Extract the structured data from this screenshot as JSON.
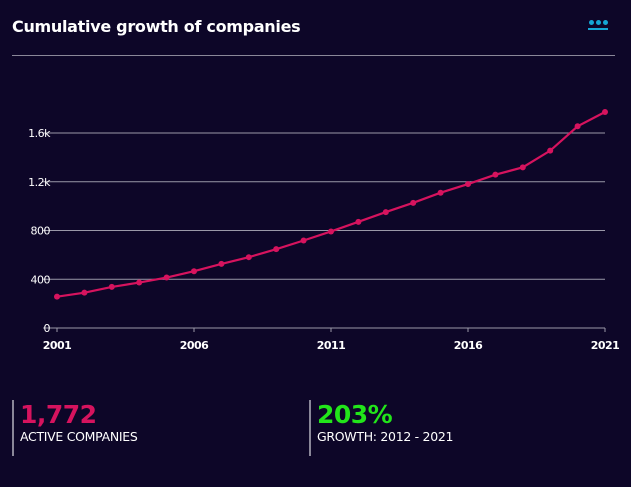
{
  "header": {
    "title": "Cumulative growth of companies",
    "menu_icon": "more-dots-icon"
  },
  "colors": {
    "background": "#0d0628",
    "line": "#d6135e",
    "growth": "#22e51a",
    "accent": "#15a6d4"
  },
  "chart_data": {
    "type": "line",
    "title": "",
    "xlabel": "",
    "ylabel": "",
    "x": [
      2001,
      2002,
      2003,
      2004,
      2005,
      2006,
      2007,
      2008,
      2009,
      2010,
      2011,
      2012,
      2013,
      2014,
      2015,
      2016,
      2017,
      2018,
      2019,
      2020,
      2021
    ],
    "series": [
      {
        "values": [
          257,
          290,
          337,
          373,
          414,
          466,
          526,
          581,
          647,
          718,
          792,
          871,
          951,
          1027,
          1110,
          1181,
          1258,
          1318,
          1455,
          1655,
          1772
        ]
      }
    ],
    "xticks": [
      2001,
      2006,
      2011,
      2016,
      2021
    ],
    "yticks": [
      {
        "v": 0,
        "label": "0"
      },
      {
        "v": 400,
        "label": "400"
      },
      {
        "v": 800,
        "label": "800"
      },
      {
        "v": 1200,
        "label": "1.2k"
      },
      {
        "v": 1600,
        "label": "1.6k"
      }
    ],
    "xlim": [
      2001,
      2021
    ],
    "ylim": [
      0,
      1800
    ],
    "grid": true,
    "legend": "none"
  },
  "stats": [
    {
      "value": "1,772",
      "label": "ACTIVE COMPANIES"
    },
    {
      "value": "203%",
      "label": "GROWTH: 2012 - 2021"
    }
  ]
}
